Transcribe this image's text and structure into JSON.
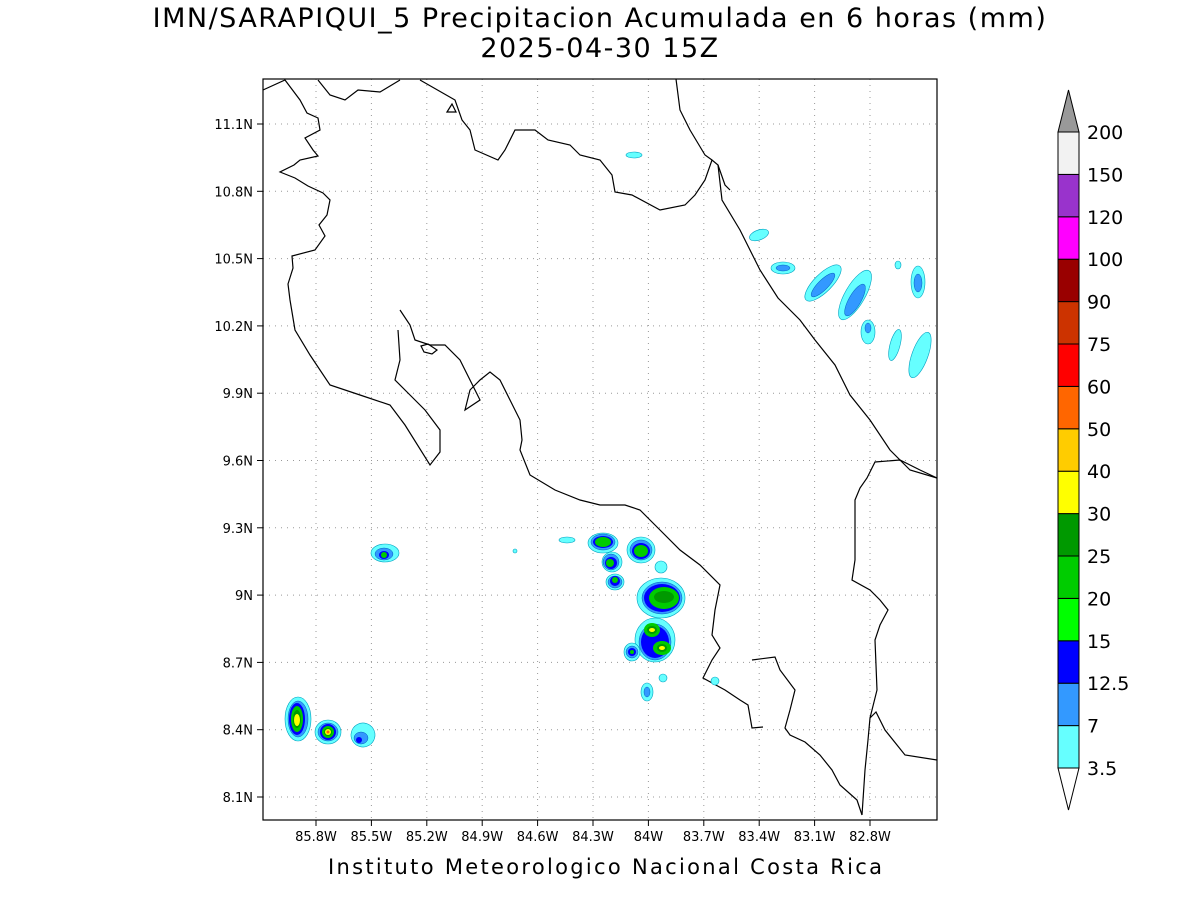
{
  "title_line1": "IMN/SARAPIQUI_5 Precipitacion Acumulada en 6 horas (mm)",
  "title_line2": "2025-04-30 15Z",
  "footer": "Instituto Meteorologico Nacional Costa Rica",
  "map": {
    "lon_labels": [
      "85.8W",
      "85.5W",
      "85.2W",
      "84.9W",
      "84.6W",
      "84.3W",
      "84W",
      "83.7W",
      "83.4W",
      "83.1W",
      "82.8W"
    ],
    "lat_labels": [
      "11.1N",
      "10.8N",
      "10.5N",
      "10.2N",
      "9.9N",
      "9.6N",
      "9.3N",
      "9N",
      "8.7N",
      "8.4N",
      "8.1N"
    ],
    "grid": "dotted"
  },
  "colorbar": {
    "labels": [
      "3.5",
      "7",
      "12.5",
      "15",
      "20",
      "25",
      "30",
      "40",
      "50",
      "60",
      "75",
      "90",
      "100",
      "120",
      "150",
      "200"
    ],
    "colors": [
      "#66ffff",
      "#3399ff",
      "#0000ff",
      "#00ff00",
      "#00cc00",
      "#009900",
      "#ffff00",
      "#ffcc00",
      "#ff6600",
      "#ff0000",
      "#cc3300",
      "#990000",
      "#ff00ff",
      "#9933cc",
      "#f2f2f2",
      "#999999"
    ]
  }
}
